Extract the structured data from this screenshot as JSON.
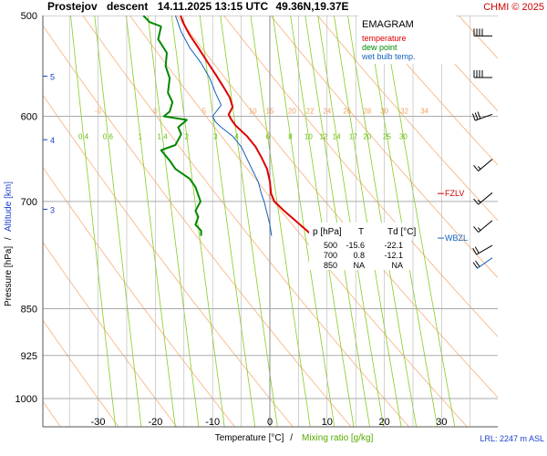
{
  "header": {
    "station": "Prostejov",
    "mode": "descent",
    "datetime": "14.11.2025 13:15 UTC",
    "coords": "49.36N,19.37E",
    "copyright": "CHMI © 2025"
  },
  "chart_data": {
    "type": "line",
    "title": "EMAGRAM",
    "xlabel": "Temperature [°C]",
    "xlabel_sep": "/",
    "xlabel2": "Mixing ratio [g/kg]",
    "ylabel": "Pressure [hPa]",
    "ylabel_sep": "/",
    "ylabel2": "Altitude [km]",
    "xlim": [
      -39,
      40
    ],
    "ylim": [
      1050,
      500
    ],
    "pressure_levels": [
      500,
      600,
      700,
      850,
      925,
      1000
    ],
    "x_ticks": [
      -30,
      -20,
      -10,
      0,
      10,
      20,
      30
    ],
    "altitude_ticks": [
      {
        "km": "5",
        "p": 558
      },
      {
        "km": "4",
        "p": 626
      },
      {
        "km": "3",
        "p": 710
      }
    ],
    "dry_adiabat_labels": [
      "-5",
      "0",
      "5",
      "10",
      "15",
      "20",
      "22",
      "24",
      "26",
      "28",
      "30",
      "32",
      "34"
    ],
    "mixing_ratio_labels": [
      "0.4",
      "0.6",
      "1",
      "1.4",
      "2",
      "3",
      "4",
      "6",
      "8",
      "10",
      "12",
      "14",
      "17",
      "20",
      "25",
      "30"
    ],
    "legend": {
      "temperature": "temperature",
      "dewpoint": "dew point",
      "wetbulb": "wet bulb temp."
    },
    "colors": {
      "temperature": "#dd0000",
      "dewpoint": "#008800",
      "wetbulb": "#1560bd",
      "isotherm": "#b3b3b3",
      "dry_adiabat": "#f5b07a",
      "mixing_ratio": "#88cc22",
      "pressure_grid": "#aaaaaa"
    },
    "series": [
      {
        "name": "temperature",
        "points": [
          [
            -15.6,
            500
          ],
          [
            -15.0,
            508
          ],
          [
            -14.0,
            518
          ],
          [
            -12.5,
            530
          ],
          [
            -11.0,
            543
          ],
          [
            -9.5,
            556
          ],
          [
            -8.2,
            568
          ],
          [
            -7.0,
            580
          ],
          [
            -6.5,
            590
          ],
          [
            -7.2,
            598
          ],
          [
            -6.8,
            603
          ],
          [
            -6.0,
            610
          ],
          [
            -4.0,
            622
          ],
          [
            -2.5,
            634
          ],
          [
            -1.5,
            646
          ],
          [
            -0.5,
            660
          ],
          [
            0.0,
            675
          ],
          [
            0.2,
            690
          ],
          [
            0.8,
            700
          ],
          [
            2.5,
            712
          ],
          [
            4.5,
            725
          ],
          [
            6.0,
            735
          ],
          [
            7.5,
            745
          ]
        ]
      },
      {
        "name": "dew point",
        "points": [
          [
            -22.1,
            500
          ],
          [
            -21.0,
            506
          ],
          [
            -19.0,
            510
          ],
          [
            -19.5,
            522
          ],
          [
            -18.0,
            535
          ],
          [
            -18.2,
            548
          ],
          [
            -17.5,
            560
          ],
          [
            -17.8,
            575
          ],
          [
            -17.0,
            585
          ],
          [
            -17.5,
            595
          ],
          [
            -18.5,
            600
          ],
          [
            -14.5,
            604
          ],
          [
            -16.0,
            612
          ],
          [
            -15.5,
            620
          ],
          [
            -16.5,
            632
          ],
          [
            -19.0,
            638
          ],
          [
            -17.5,
            650
          ],
          [
            -16.5,
            660
          ],
          [
            -14.0,
            672
          ],
          [
            -13.0,
            682
          ],
          [
            -12.1,
            700
          ],
          [
            -13.0,
            712
          ],
          [
            -12.5,
            720
          ],
          [
            -13.0,
            730
          ],
          [
            -12.0,
            738
          ],
          [
            -12.0,
            745
          ]
        ]
      },
      {
        "name": "wet bulb temp.",
        "points": [
          [
            -16.5,
            500
          ],
          [
            -15.5,
            515
          ],
          [
            -14.0,
            530
          ],
          [
            -12.0,
            545
          ],
          [
            -10.5,
            560
          ],
          [
            -9.5,
            575
          ],
          [
            -8.5,
            588
          ],
          [
            -10.0,
            600
          ],
          [
            -9.5,
            606
          ],
          [
            -8.5,
            612
          ],
          [
            -6.5,
            622
          ],
          [
            -5.0,
            634
          ],
          [
            -4.0,
            648
          ],
          [
            -3.0,
            662
          ],
          [
            -2.0,
            676
          ],
          [
            -1.5,
            690
          ],
          [
            -1.0,
            700
          ],
          [
            -0.5,
            715
          ],
          [
            0.0,
            730
          ],
          [
            0.3,
            745
          ]
        ]
      }
    ],
    "markers": [
      {
        "label": "FZLV",
        "p": 690
      },
      {
        "label": "WBZL",
        "p": 748
      }
    ],
    "table": {
      "headers": [
        "p [hPa]",
        "T",
        "Td [°C]"
      ],
      "rows": [
        [
          "500",
          "-15.6",
          "-22.1"
        ],
        [
          "700",
          "0.8",
          "-12.1"
        ],
        [
          "850",
          "NA",
          "NA"
        ]
      ]
    },
    "lcl": "LRL: 2247 m ASL",
    "wind_barbs": [
      {
        "p": 512,
        "dir": 270,
        "speed": 40
      },
      {
        "p": 552,
        "dir": 270,
        "speed": 40
      },
      {
        "p": 590,
        "dir": 250,
        "speed": 30
      },
      {
        "p": 640,
        "dir": 230,
        "speed": 15
      },
      {
        "p": 680,
        "dir": 230,
        "speed": 15
      },
      {
        "p": 715,
        "dir": 230,
        "speed": 15
      },
      {
        "p": 748,
        "dir": 240,
        "speed": 20
      },
      {
        "p": 765,
        "dir": 235,
        "speed": 20
      }
    ]
  }
}
